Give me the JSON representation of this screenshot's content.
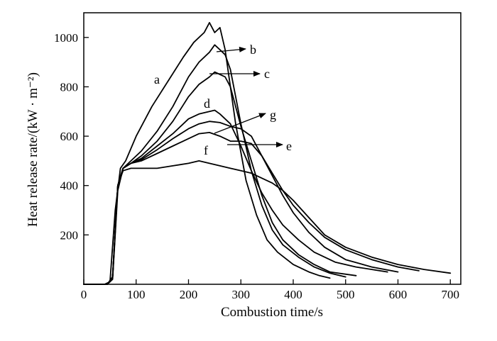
{
  "chart_data": {
    "type": "line",
    "xlabel": "Combustion time/s",
    "ylabel": "Heat release rate/(kW · m⁻²)",
    "xlim": [
      0,
      720
    ],
    "ylim": [
      0,
      1100
    ],
    "xticks": [
      0,
      100,
      200,
      300,
      400,
      500,
      600,
      700
    ],
    "yticks": [
      200,
      400,
      600,
      800,
      1000
    ],
    "grid": false,
    "legend": "none",
    "series": [
      {
        "name": "a",
        "x": [
          0,
          40,
          50,
          60,
          70,
          80,
          100,
          130,
          160,
          190,
          210,
          230,
          240,
          250,
          260,
          270,
          290,
          310,
          330,
          350,
          370,
          400,
          430,
          450,
          470
        ],
        "y": [
          0,
          0,
          10,
          300,
          470,
          500,
          600,
          720,
          820,
          920,
          980,
          1020,
          1060,
          1020,
          1040,
          950,
          650,
          420,
          280,
          180,
          130,
          80,
          50,
          35,
          25
        ]
      },
      {
        "name": "b",
        "x": [
          0,
          45,
          55,
          65,
          75,
          90,
          110,
          140,
          170,
          200,
          220,
          240,
          250,
          260,
          270,
          280,
          300,
          320,
          340,
          360,
          380,
          410,
          440,
          470,
          500
        ],
        "y": [
          0,
          0,
          20,
          380,
          470,
          500,
          540,
          620,
          720,
          840,
          900,
          940,
          970,
          950,
          930,
          870,
          650,
          460,
          320,
          220,
          160,
          110,
          70,
          45,
          30
        ]
      },
      {
        "name": "c",
        "x": [
          0,
          45,
          55,
          65,
          75,
          90,
          110,
          140,
          170,
          200,
          220,
          240,
          250,
          260,
          270,
          280,
          300,
          320,
          340,
          360,
          380,
          410,
          440,
          470,
          520
        ],
        "y": [
          0,
          0,
          30,
          400,
          470,
          490,
          520,
          580,
          660,
          760,
          810,
          840,
          860,
          850,
          840,
          800,
          640,
          500,
          360,
          250,
          180,
          120,
          80,
          50,
          35
        ]
      },
      {
        "name": "d",
        "x": [
          0,
          45,
          55,
          65,
          75,
          90,
          110,
          140,
          170,
          200,
          220,
          240,
          250,
          260,
          280,
          300,
          320,
          340,
          360,
          380,
          410,
          440,
          480,
          520,
          580
        ],
        "y": [
          0,
          0,
          30,
          400,
          470,
          490,
          510,
          560,
          610,
          670,
          690,
          700,
          705,
          690,
          650,
          560,
          460,
          370,
          300,
          240,
          180,
          130,
          90,
          70,
          50
        ]
      },
      {
        "name": "e",
        "x": [
          0,
          45,
          55,
          65,
          75,
          90,
          110,
          140,
          170,
          200,
          220,
          240,
          260,
          280,
          300,
          320,
          340,
          360,
          380,
          400,
          430,
          460,
          500,
          550,
          600,
          640
        ],
        "y": [
          0,
          0,
          30,
          400,
          470,
          490,
          500,
          530,
          560,
          590,
          610,
          615,
          600,
          580,
          580,
          570,
          520,
          450,
          380,
          320,
          250,
          190,
          140,
          100,
          70,
          55
        ]
      },
      {
        "name": "f",
        "x": [
          0,
          45,
          55,
          65,
          75,
          90,
          110,
          140,
          170,
          200,
          220,
          240,
          260,
          280,
          300,
          320,
          340,
          360,
          380,
          400,
          430,
          460,
          500,
          550,
          600,
          650,
          700
        ],
        "y": [
          0,
          0,
          30,
          400,
          460,
          470,
          470,
          470,
          480,
          490,
          500,
          490,
          480,
          470,
          460,
          450,
          430,
          410,
          380,
          340,
          270,
          200,
          150,
          110,
          80,
          60,
          45
        ]
      },
      {
        "name": "g",
        "x": [
          0,
          45,
          55,
          65,
          75,
          90,
          110,
          140,
          170,
          200,
          220,
          240,
          260,
          280,
          300,
          320,
          340,
          360,
          380,
          400,
          430,
          460,
          500,
          550,
          600
        ],
        "y": [
          0,
          0,
          30,
          400,
          470,
          490,
          505,
          545,
          590,
          630,
          650,
          660,
          655,
          640,
          630,
          600,
          520,
          440,
          360,
          290,
          210,
          150,
          100,
          70,
          50
        ]
      }
    ],
    "annotations": [
      {
        "text": "a",
        "arrow": false
      },
      {
        "text": "b",
        "arrow": true
      },
      {
        "text": "c",
        "arrow": true
      },
      {
        "text": "d",
        "arrow": false
      },
      {
        "text": "g",
        "arrow": true
      },
      {
        "text": "e",
        "arrow": true
      },
      {
        "text": "f",
        "arrow": false
      }
    ]
  }
}
